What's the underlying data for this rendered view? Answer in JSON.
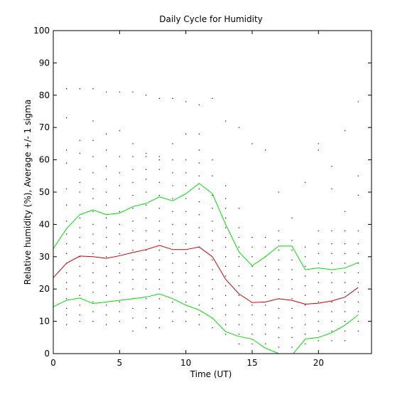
{
  "chart_data": {
    "type": "line",
    "title": "Daily Cycle for Humidity",
    "xlabel": "Time (UT)",
    "ylabel": "Relative humidity (%), Average +/- 1 sigma",
    "xlim": [
      0,
      24
    ],
    "ylim": [
      0,
      100
    ],
    "x_ticks": [
      0,
      5,
      10,
      15,
      20
    ],
    "y_ticks": [
      0,
      10,
      20,
      30,
      40,
      50,
      60,
      70,
      80,
      90,
      100
    ],
    "grid": false,
    "x": [
      0,
      1,
      2,
      3,
      4,
      5,
      6,
      7,
      8,
      9,
      10,
      11,
      12,
      13,
      14,
      15,
      16,
      17,
      18,
      19,
      20,
      21,
      22,
      23
    ],
    "series": [
      {
        "color": "#00dd00",
        "values": [
          32.5,
          38.7,
          43.0,
          44.5,
          43.0,
          43.5,
          45.5,
          46.5,
          48.5,
          47.3,
          49.5,
          52.7,
          49.5,
          40.0,
          31.5,
          27.2,
          30.0,
          33.3,
          33.3,
          26.0,
          26.5,
          26.0,
          26.5,
          28.2
        ]
      },
      {
        "color": "#cc0000",
        "values": [
          23.5,
          28.0,
          30.2,
          30.0,
          29.5,
          30.3,
          31.3,
          32.2,
          33.5,
          32.2,
          32.2,
          33.0,
          30.0,
          23.0,
          18.5,
          15.8,
          16.0,
          17.0,
          16.5,
          15.3,
          15.6,
          16.3,
          17.5,
          20.5
        ]
      },
      {
        "color": "#00dd00",
        "values": [
          14.5,
          16.5,
          17.2,
          15.5,
          16.0,
          16.5,
          17.0,
          17.5,
          18.5,
          17.0,
          15.0,
          13.5,
          11.0,
          6.8,
          5.3,
          4.5,
          1.7,
          0.0,
          -0.5,
          4.5,
          5.0,
          6.5,
          8.8,
          12.0
        ]
      }
    ],
    "scatter_points": [
      [
        0,
        11
      ],
      [
        0,
        13
      ],
      [
        0,
        16
      ],
      [
        0,
        18
      ],
      [
        0,
        21
      ],
      [
        0,
        23
      ],
      [
        0,
        26
      ],
      [
        0,
        29
      ],
      [
        1,
        9
      ],
      [
        1,
        12
      ],
      [
        1,
        14
      ],
      [
        1,
        17
      ],
      [
        1,
        20
      ],
      [
        1,
        22
      ],
      [
        1,
        25
      ],
      [
        1,
        28
      ],
      [
        1,
        31
      ],
      [
        1,
        34
      ],
      [
        1,
        37
      ],
      [
        1,
        41
      ],
      [
        1,
        46
      ],
      [
        1,
        51
      ],
      [
        1,
        59
      ],
      [
        1,
        63
      ],
      [
        1,
        73
      ],
      [
        1,
        82
      ],
      [
        2,
        10
      ],
      [
        2,
        12
      ],
      [
        2,
        15
      ],
      [
        2,
        18
      ],
      [
        2,
        21
      ],
      [
        2,
        24
      ],
      [
        2,
        27
      ],
      [
        2,
        30
      ],
      [
        2,
        33
      ],
      [
        2,
        36
      ],
      [
        2,
        39
      ],
      [
        2,
        42
      ],
      [
        2,
        46
      ],
      [
        2,
        50
      ],
      [
        2,
        53
      ],
      [
        2,
        57
      ],
      [
        2,
        62
      ],
      [
        2,
        66
      ],
      [
        2,
        82
      ],
      [
        3,
        10
      ],
      [
        3,
        13
      ],
      [
        3,
        16
      ],
      [
        3,
        19
      ],
      [
        3,
        22
      ],
      [
        3,
        25
      ],
      [
        3,
        28
      ],
      [
        3,
        31
      ],
      [
        3,
        34
      ],
      [
        3,
        37
      ],
      [
        3,
        40
      ],
      [
        3,
        44
      ],
      [
        3,
        48
      ],
      [
        3,
        51
      ],
      [
        3,
        56
      ],
      [
        3,
        61
      ],
      [
        3,
        66
      ],
      [
        3,
        72
      ],
      [
        3,
        82
      ],
      [
        4,
        9
      ],
      [
        4,
        12
      ],
      [
        4,
        15
      ],
      [
        4,
        18
      ],
      [
        4,
        21
      ],
      [
        4,
        24
      ],
      [
        4,
        27
      ],
      [
        4,
        30
      ],
      [
        4,
        33
      ],
      [
        4,
        36
      ],
      [
        4,
        39
      ],
      [
        4,
        42
      ],
      [
        4,
        46
      ],
      [
        4,
        50
      ],
      [
        4,
        54
      ],
      [
        4,
        58
      ],
      [
        4,
        63
      ],
      [
        4,
        68
      ],
      [
        4,
        81
      ],
      [
        5,
        10
      ],
      [
        5,
        13
      ],
      [
        5,
        16
      ],
      [
        5,
        19
      ],
      [
        5,
        22
      ],
      [
        5,
        25
      ],
      [
        5,
        28
      ],
      [
        5,
        31
      ],
      [
        5,
        34
      ],
      [
        5,
        37
      ],
      [
        5,
        40
      ],
      [
        5,
        44
      ],
      [
        5,
        48
      ],
      [
        5,
        52
      ],
      [
        5,
        56
      ],
      [
        5,
        61
      ],
      [
        5,
        69
      ],
      [
        5,
        81
      ],
      [
        6,
        7
      ],
      [
        6,
        11
      ],
      [
        6,
        14
      ],
      [
        6,
        17
      ],
      [
        6,
        20
      ],
      [
        6,
        23
      ],
      [
        6,
        26
      ],
      [
        6,
        29
      ],
      [
        6,
        32
      ],
      [
        6,
        35
      ],
      [
        6,
        38
      ],
      [
        6,
        41
      ],
      [
        6,
        45
      ],
      [
        6,
        49
      ],
      [
        6,
        53
      ],
      [
        6,
        57
      ],
      [
        6,
        61
      ],
      [
        6,
        65
      ],
      [
        6,
        81
      ],
      [
        7,
        8
      ],
      [
        7,
        11
      ],
      [
        7,
        14
      ],
      [
        7,
        17
      ],
      [
        7,
        20
      ],
      [
        7,
        23
      ],
      [
        7,
        26
      ],
      [
        7,
        29
      ],
      [
        7,
        32
      ],
      [
        7,
        35
      ],
      [
        7,
        38
      ],
      [
        7,
        42
      ],
      [
        7,
        46
      ],
      [
        7,
        50
      ],
      [
        7,
        54
      ],
      [
        7,
        57
      ],
      [
        7,
        61
      ],
      [
        7,
        62
      ],
      [
        7,
        80
      ],
      [
        8,
        8
      ],
      [
        8,
        11
      ],
      [
        8,
        14
      ],
      [
        8,
        17
      ],
      [
        8,
        20
      ],
      [
        8,
        23
      ],
      [
        8,
        26
      ],
      [
        8,
        29
      ],
      [
        8,
        32
      ],
      [
        8,
        35
      ],
      [
        8,
        38
      ],
      [
        8,
        41
      ],
      [
        8,
        45
      ],
      [
        8,
        49
      ],
      [
        8,
        53
      ],
      [
        8,
        57
      ],
      [
        8,
        60
      ],
      [
        8,
        61
      ],
      [
        8,
        79
      ],
      [
        9,
        10
      ],
      [
        9,
        13
      ],
      [
        9,
        16
      ],
      [
        9,
        19
      ],
      [
        9,
        22
      ],
      [
        9,
        25
      ],
      [
        9,
        28
      ],
      [
        9,
        31
      ],
      [
        9,
        34
      ],
      [
        9,
        37
      ],
      [
        9,
        40
      ],
      [
        9,
        44
      ],
      [
        9,
        48
      ],
      [
        9,
        52
      ],
      [
        9,
        56
      ],
      [
        9,
        60
      ],
      [
        9,
        65
      ],
      [
        9,
        79
      ],
      [
        10,
        10
      ],
      [
        10,
        13
      ],
      [
        10,
        16
      ],
      [
        10,
        19
      ],
      [
        10,
        22
      ],
      [
        10,
        25
      ],
      [
        10,
        28
      ],
      [
        10,
        31
      ],
      [
        10,
        34
      ],
      [
        10,
        37
      ],
      [
        10,
        40
      ],
      [
        10,
        44
      ],
      [
        10,
        48
      ],
      [
        10,
        52
      ],
      [
        10,
        56
      ],
      [
        10,
        60
      ],
      [
        10,
        68
      ],
      [
        10,
        78
      ],
      [
        11,
        9
      ],
      [
        11,
        12
      ],
      [
        11,
        15
      ],
      [
        11,
        18
      ],
      [
        11,
        21
      ],
      [
        11,
        24
      ],
      [
        11,
        27
      ],
      [
        11,
        30
      ],
      [
        11,
        33
      ],
      [
        11,
        36
      ],
      [
        11,
        39
      ],
      [
        11,
        43
      ],
      [
        11,
        47
      ],
      [
        11,
        51
      ],
      [
        11,
        55
      ],
      [
        11,
        59
      ],
      [
        11,
        63
      ],
      [
        11,
        68
      ],
      [
        11,
        77
      ],
      [
        12,
        8
      ],
      [
        12,
        11
      ],
      [
        12,
        14
      ],
      [
        12,
        17
      ],
      [
        12,
        20
      ],
      [
        12,
        23
      ],
      [
        12,
        26
      ],
      [
        12,
        29
      ],
      [
        12,
        32
      ],
      [
        12,
        35
      ],
      [
        12,
        38
      ],
      [
        12,
        41
      ],
      [
        12,
        45
      ],
      [
        12,
        49
      ],
      [
        12,
        55
      ],
      [
        12,
        60
      ],
      [
        12,
        79
      ],
      [
        13,
        6
      ],
      [
        13,
        9
      ],
      [
        13,
        12
      ],
      [
        13,
        15
      ],
      [
        13,
        18
      ],
      [
        13,
        21
      ],
      [
        13,
        24
      ],
      [
        13,
        27
      ],
      [
        13,
        30
      ],
      [
        13,
        33
      ],
      [
        13,
        36
      ],
      [
        13,
        39
      ],
      [
        13,
        42
      ],
      [
        13,
        45
      ],
      [
        13,
        48
      ],
      [
        13,
        52
      ],
      [
        13,
        72
      ],
      [
        14,
        3
      ],
      [
        14,
        6
      ],
      [
        14,
        9
      ],
      [
        14,
        12
      ],
      [
        14,
        15
      ],
      [
        14,
        18
      ],
      [
        14,
        21
      ],
      [
        14,
        24
      ],
      [
        14,
        27
      ],
      [
        14,
        30
      ],
      [
        14,
        33
      ],
      [
        14,
        36
      ],
      [
        14,
        39
      ],
      [
        14,
        45
      ],
      [
        14,
        70
      ],
      [
        15,
        3
      ],
      [
        15,
        6
      ],
      [
        15,
        9
      ],
      [
        15,
        12
      ],
      [
        15,
        15
      ],
      [
        15,
        18
      ],
      [
        15,
        21
      ],
      [
        15,
        24
      ],
      [
        15,
        27
      ],
      [
        15,
        30
      ],
      [
        15,
        33
      ],
      [
        15,
        36
      ],
      [
        15,
        65
      ],
      [
        16,
        3
      ],
      [
        16,
        6
      ],
      [
        16,
        9
      ],
      [
        16,
        12
      ],
      [
        16,
        15
      ],
      [
        16,
        18
      ],
      [
        16,
        21
      ],
      [
        16,
        24
      ],
      [
        16,
        27
      ],
      [
        16,
        30
      ],
      [
        16,
        33
      ],
      [
        16,
        36
      ],
      [
        16,
        63
      ],
      [
        17,
        2
      ],
      [
        17,
        5
      ],
      [
        17,
        8
      ],
      [
        17,
        11
      ],
      [
        17,
        14
      ],
      [
        17,
        17
      ],
      [
        17,
        20
      ],
      [
        17,
        23
      ],
      [
        17,
        26
      ],
      [
        17,
        29
      ],
      [
        17,
        32
      ],
      [
        17,
        35
      ],
      [
        17,
        38
      ],
      [
        17,
        50
      ],
      [
        18,
        2
      ],
      [
        18,
        5
      ],
      [
        18,
        8
      ],
      [
        18,
        11
      ],
      [
        18,
        14
      ],
      [
        18,
        17
      ],
      [
        18,
        20
      ],
      [
        18,
        23
      ],
      [
        18,
        26
      ],
      [
        18,
        29
      ],
      [
        18,
        32
      ],
      [
        18,
        35
      ],
      [
        18,
        42
      ],
      [
        19,
        3
      ],
      [
        19,
        6
      ],
      [
        19,
        9
      ],
      [
        19,
        12
      ],
      [
        19,
        15
      ],
      [
        19,
        18
      ],
      [
        19,
        21
      ],
      [
        19,
        24
      ],
      [
        19,
        27
      ],
      [
        19,
        30
      ],
      [
        19,
        33
      ],
      [
        19,
        53
      ],
      [
        20,
        4
      ],
      [
        20,
        7
      ],
      [
        20,
        10
      ],
      [
        20,
        13
      ],
      [
        20,
        16
      ],
      [
        20,
        19
      ],
      [
        20,
        22
      ],
      [
        20,
        25
      ],
      [
        20,
        28
      ],
      [
        20,
        31
      ],
      [
        20,
        34
      ],
      [
        20,
        38
      ],
      [
        20,
        63
      ],
      [
        20,
        65
      ],
      [
        21,
        4
      ],
      [
        21,
        7
      ],
      [
        21,
        10
      ],
      [
        21,
        13
      ],
      [
        21,
        16
      ],
      [
        21,
        19
      ],
      [
        21,
        22
      ],
      [
        21,
        25
      ],
      [
        21,
        28
      ],
      [
        21,
        31
      ],
      [
        21,
        34
      ],
      [
        21,
        38
      ],
      [
        21,
        51
      ],
      [
        21,
        58
      ],
      [
        22,
        4
      ],
      [
        22,
        7
      ],
      [
        22,
        10
      ],
      [
        22,
        13
      ],
      [
        22,
        16
      ],
      [
        22,
        19
      ],
      [
        22,
        22
      ],
      [
        22,
        25
      ],
      [
        22,
        28
      ],
      [
        22,
        31
      ],
      [
        22,
        34
      ],
      [
        22,
        38
      ],
      [
        22,
        44
      ],
      [
        22,
        69
      ],
      [
        23,
        7
      ],
      [
        23,
        10
      ],
      [
        23,
        13
      ],
      [
        23,
        16
      ],
      [
        23,
        19
      ],
      [
        23,
        22
      ],
      [
        23,
        25
      ],
      [
        23,
        28
      ],
      [
        23,
        31
      ],
      [
        23,
        34
      ],
      [
        23,
        38
      ],
      [
        23,
        49
      ],
      [
        23,
        55
      ],
      [
        23,
        78
      ]
    ]
  }
}
